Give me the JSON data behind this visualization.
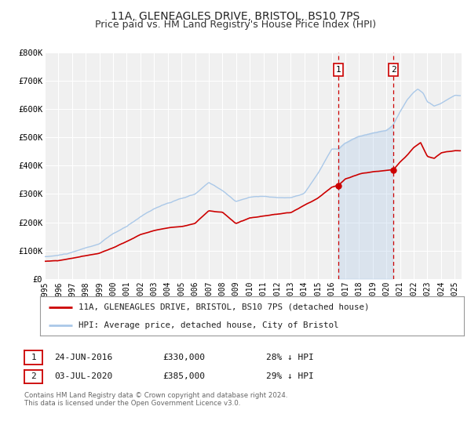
{
  "title": "11A, GLENEAGLES DRIVE, BRISTOL, BS10 7PS",
  "subtitle": "Price paid vs. HM Land Registry's House Price Index (HPI)",
  "title_fontsize": 10,
  "subtitle_fontsize": 9,
  "bg_color": "#ffffff",
  "plot_bg_color": "#f0f0f0",
  "grid_color": "#ffffff",
  "hpi_color": "#aac8e8",
  "price_color": "#cc0000",
  "annotation_box_color": "#cc0000",
  "vline_color": "#cc0000",
  "event1_year": 2016.48,
  "event1_label": "1",
  "event1_price": 330000,
  "event1_date": "24-JUN-2016",
  "event1_pct": "28% ↓ HPI",
  "event2_year": 2020.51,
  "event2_label": "2",
  "event2_price": 385000,
  "event2_date": "03-JUL-2020",
  "event2_pct": "29% ↓ HPI",
  "legend_label1": "11A, GLENEAGLES DRIVE, BRISTOL, BS10 7PS (detached house)",
  "legend_label2": "HPI: Average price, detached house, City of Bristol",
  "footer1": "Contains HM Land Registry data © Crown copyright and database right 2024.",
  "footer2": "This data is licensed under the Open Government Licence v3.0.",
  "ylim": [
    0,
    800000
  ],
  "xlim_start": 1995,
  "xlim_end": 2025.5,
  "yticks": [
    0,
    100000,
    200000,
    300000,
    400000,
    500000,
    600000,
    700000,
    800000
  ],
  "ytick_labels": [
    "£0",
    "£100K",
    "£200K",
    "£300K",
    "£400K",
    "£500K",
    "£600K",
    "£700K",
    "£800K"
  ],
  "xticks": [
    1995,
    1996,
    1997,
    1998,
    1999,
    2000,
    2001,
    2002,
    2003,
    2004,
    2005,
    2006,
    2007,
    2008,
    2009,
    2010,
    2011,
    2012,
    2013,
    2014,
    2015,
    2016,
    2017,
    2018,
    2019,
    2020,
    2021,
    2022,
    2023,
    2024,
    2025
  ]
}
